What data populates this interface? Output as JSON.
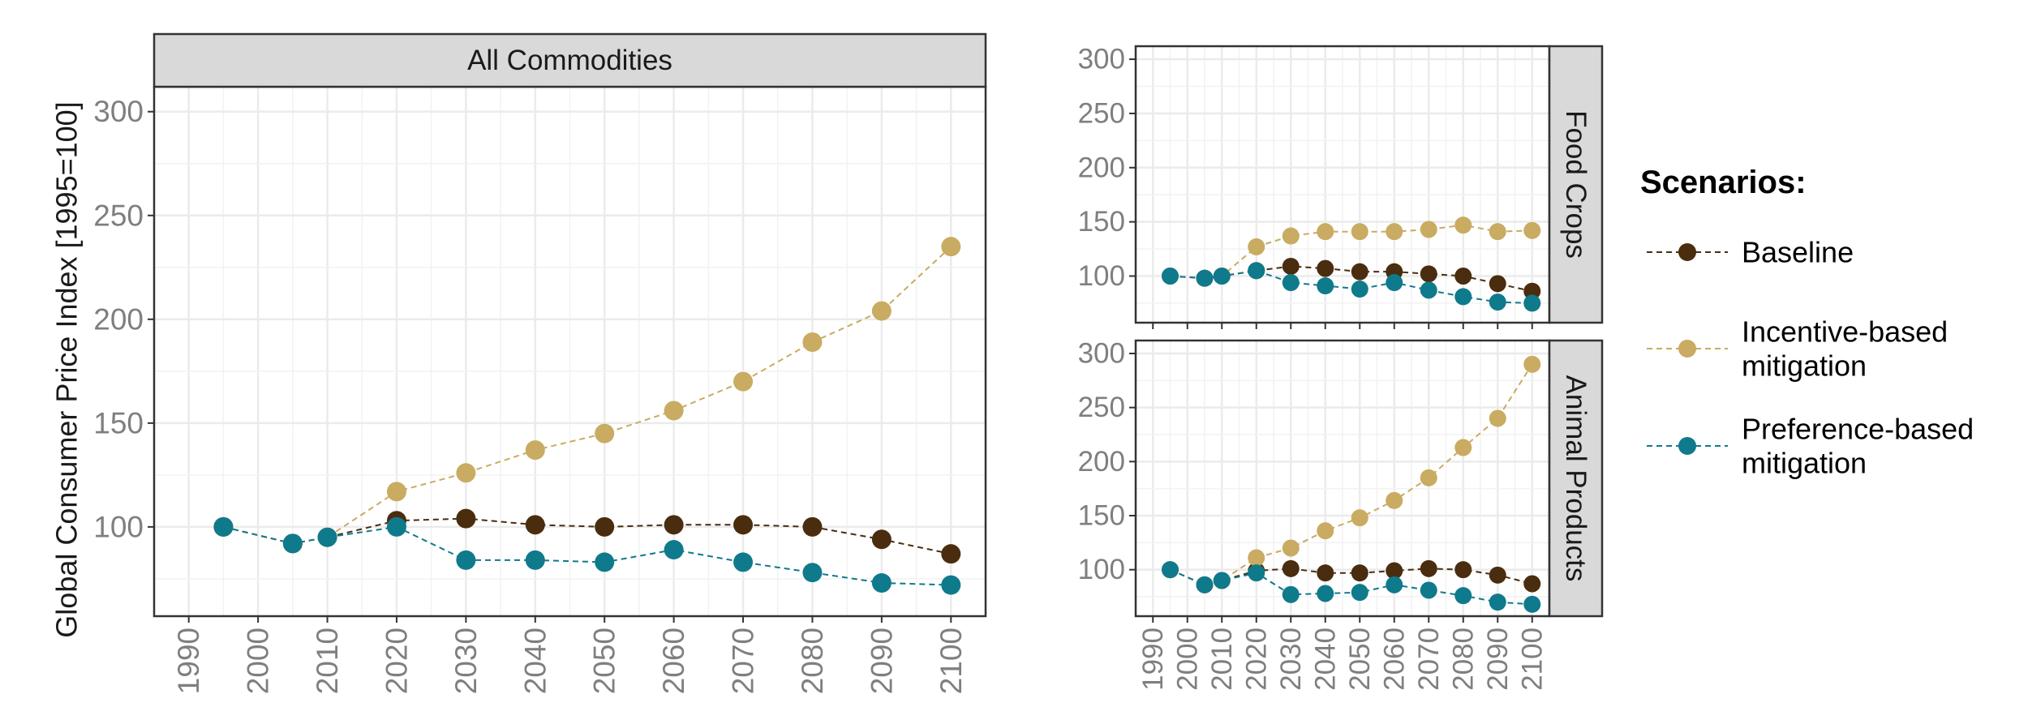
{
  "chart_data": [
    {
      "type": "line",
      "panel": "All Commodities",
      "ylabel": "Global Consumer Price Index [1995=100]",
      "xlabel": "",
      "xlim": [
        1985,
        2105
      ],
      "ylim": [
        57,
        312
      ],
      "x_ticks": [
        "1990",
        "2000",
        "2010",
        "2020",
        "2030",
        "2040",
        "2050",
        "2060",
        "2070",
        "2080",
        "2090",
        "2100"
      ],
      "y_ticks": [
        "100",
        "150",
        "200",
        "250",
        "300"
      ],
      "grid": true,
      "series": [
        {
          "name": "Baseline",
          "color": "#4a2d0e",
          "x": [
            1995,
            2005,
            2010,
            2020,
            2030,
            2040,
            2050,
            2060,
            2070,
            2080,
            2090,
            2100
          ],
          "values": [
            100,
            92,
            95,
            103,
            104,
            101,
            100,
            101,
            101,
            100,
            94,
            87
          ]
        },
        {
          "name": "Incentive-based mitigation",
          "color": "#c9ab62",
          "x": [
            1995,
            2005,
            2010,
            2020,
            2030,
            2040,
            2050,
            2060,
            2070,
            2080,
            2090,
            2100
          ],
          "values": [
            100,
            92,
            95,
            117,
            126,
            137,
            145,
            156,
            170,
            189,
            204,
            235
          ]
        },
        {
          "name": "Preference-based mitigation",
          "color": "#0f7a8c",
          "x": [
            1995,
            2005,
            2010,
            2020,
            2030,
            2040,
            2050,
            2060,
            2070,
            2080,
            2090,
            2100
          ],
          "values": [
            100,
            92,
            95,
            100,
            84,
            84,
            83,
            89,
            83,
            78,
            73,
            72
          ]
        }
      ]
    },
    {
      "type": "line",
      "panel": "Food Crops",
      "xlim": [
        1985,
        2105
      ],
      "ylim": [
        57,
        312
      ],
      "x_ticks": [
        "1990",
        "2000",
        "2010",
        "2020",
        "2030",
        "2040",
        "2050",
        "2060",
        "2070",
        "2080",
        "2090",
        "2100"
      ],
      "y_ticks": [
        "100",
        "150",
        "200",
        "250",
        "300"
      ],
      "grid": true,
      "series": [
        {
          "name": "Baseline",
          "color": "#4a2d0e",
          "x": [
            1995,
            2005,
            2010,
            2020,
            2030,
            2040,
            2050,
            2060,
            2070,
            2080,
            2090,
            2100
          ],
          "values": [
            100,
            98,
            100,
            105,
            109,
            107,
            104,
            104,
            102,
            100,
            93,
            86
          ]
        },
        {
          "name": "Incentive-based mitigation",
          "color": "#c9ab62",
          "x": [
            1995,
            2005,
            2010,
            2020,
            2030,
            2040,
            2050,
            2060,
            2070,
            2080,
            2090,
            2100
          ],
          "values": [
            100,
            98,
            100,
            127,
            137,
            141,
            141,
            141,
            143,
            147,
            141,
            142
          ]
        },
        {
          "name": "Preference-based mitigation",
          "color": "#0f7a8c",
          "x": [
            1995,
            2005,
            2010,
            2020,
            2030,
            2040,
            2050,
            2060,
            2070,
            2080,
            2090,
            2100
          ],
          "values": [
            100,
            98,
            100,
            105,
            94,
            91,
            88,
            94,
            87,
            81,
            76,
            75
          ]
        }
      ]
    },
    {
      "type": "line",
      "panel": "Animal Products",
      "xlim": [
        1985,
        2105
      ],
      "ylim": [
        57,
        312
      ],
      "x_ticks": [
        "1990",
        "2000",
        "2010",
        "2020",
        "2030",
        "2040",
        "2050",
        "2060",
        "2070",
        "2080",
        "2090",
        "2100"
      ],
      "y_ticks": [
        "100",
        "150",
        "200",
        "250",
        "300"
      ],
      "grid": true,
      "series": [
        {
          "name": "Baseline",
          "color": "#4a2d0e",
          "x": [
            1995,
            2005,
            2010,
            2020,
            2030,
            2040,
            2050,
            2060,
            2070,
            2080,
            2090,
            2100
          ],
          "values": [
            100,
            86,
            90,
            99,
            101,
            97,
            97,
            99,
            101,
            100,
            95,
            87
          ]
        },
        {
          "name": "Incentive-based mitigation",
          "color": "#c9ab62",
          "x": [
            1995,
            2005,
            2010,
            2020,
            2030,
            2040,
            2050,
            2060,
            2070,
            2080,
            2090,
            2100
          ],
          "values": [
            100,
            86,
            90,
            111,
            120,
            136,
            148,
            164,
            185,
            213,
            240,
            290
          ]
        },
        {
          "name": "Preference-based mitigation",
          "color": "#0f7a8c",
          "x": [
            1995,
            2005,
            2010,
            2020,
            2030,
            2040,
            2050,
            2060,
            2070,
            2080,
            2090,
            2100
          ],
          "values": [
            100,
            86,
            90,
            97,
            77,
            78,
            79,
            86,
            81,
            76,
            70,
            68
          ]
        }
      ]
    }
  ],
  "legend": {
    "title": "Scenarios:",
    "placement": "right",
    "items": [
      {
        "label_lines": [
          "Baseline"
        ],
        "color": "#4a2d0e"
      },
      {
        "label_lines": [
          "Incentive-based",
          "mitigation"
        ],
        "color": "#c9ab62"
      },
      {
        "label_lines": [
          "Preference-based",
          "mitigation"
        ],
        "color": "#0f7a8c"
      }
    ]
  }
}
